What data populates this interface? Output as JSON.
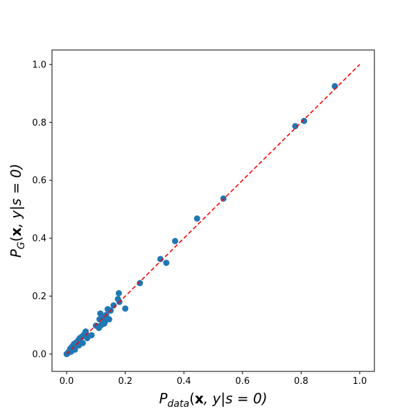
{
  "chart_data": {
    "type": "scatter",
    "xlabel": "P_{data}(\\mathbf{x}, y|s=0)",
    "ylabel": "P_G(\\mathbf{x}, y|s=0)",
    "xlabel_parts": {
      "P": "P",
      "sub": "data",
      "open": "(",
      "bold": "x",
      "rest": ", y|s = 0)"
    },
    "ylabel_parts": {
      "P": "P",
      "sub": "G",
      "open": "(",
      "bold": "x",
      "rest": ", y|s = 0)"
    },
    "xlim": [
      -0.05,
      1.05
    ],
    "ylim": [
      -0.06,
      1.05
    ],
    "x_ticks": [
      0.0,
      0.2,
      0.4,
      0.6,
      0.8,
      1.0
    ],
    "y_ticks": [
      0.0,
      0.2,
      0.4,
      0.6,
      0.8,
      1.0
    ],
    "x_tick_labels": [
      "0.0",
      "0.2",
      "0.4",
      "0.6",
      "0.8",
      "1.0"
    ],
    "y_tick_labels": [
      "0.0",
      "0.2",
      "0.4",
      "0.6",
      "0.8",
      "1.0"
    ],
    "grid": false,
    "points": [
      {
        "x": 0.0,
        "y": 0.0
      },
      {
        "x": 0.003,
        "y": 0.002
      },
      {
        "x": 0.006,
        "y": 0.006
      },
      {
        "x": 0.01,
        "y": 0.01
      },
      {
        "x": 0.012,
        "y": 0.018
      },
      {
        "x": 0.015,
        "y": 0.008
      },
      {
        "x": 0.018,
        "y": 0.025
      },
      {
        "x": 0.022,
        "y": 0.02
      },
      {
        "x": 0.025,
        "y": 0.035
      },
      {
        "x": 0.028,
        "y": 0.015
      },
      {
        "x": 0.03,
        "y": 0.028
      },
      {
        "x": 0.033,
        "y": 0.04
      },
      {
        "x": 0.036,
        "y": 0.032
      },
      {
        "x": 0.04,
        "y": 0.048
      },
      {
        "x": 0.042,
        "y": 0.03
      },
      {
        "x": 0.045,
        "y": 0.055
      },
      {
        "x": 0.048,
        "y": 0.042
      },
      {
        "x": 0.052,
        "y": 0.06
      },
      {
        "x": 0.055,
        "y": 0.038
      },
      {
        "x": 0.058,
        "y": 0.065
      },
      {
        "x": 0.062,
        "y": 0.07
      },
      {
        "x": 0.065,
        "y": 0.078
      },
      {
        "x": 0.07,
        "y": 0.055
      },
      {
        "x": 0.075,
        "y": 0.062
      },
      {
        "x": 0.085,
        "y": 0.065
      },
      {
        "x": 0.1,
        "y": 0.098
      },
      {
        "x": 0.11,
        "y": 0.09
      },
      {
        "x": 0.112,
        "y": 0.12
      },
      {
        "x": 0.115,
        "y": 0.14
      },
      {
        "x": 0.118,
        "y": 0.1
      },
      {
        "x": 0.125,
        "y": 0.125
      },
      {
        "x": 0.128,
        "y": 0.105
      },
      {
        "x": 0.13,
        "y": 0.11
      },
      {
        "x": 0.135,
        "y": 0.135
      },
      {
        "x": 0.14,
        "y": 0.155
      },
      {
        "x": 0.145,
        "y": 0.12
      },
      {
        "x": 0.15,
        "y": 0.15
      },
      {
        "x": 0.16,
        "y": 0.168
      },
      {
        "x": 0.175,
        "y": 0.19
      },
      {
        "x": 0.178,
        "y": 0.21
      },
      {
        "x": 0.18,
        "y": 0.18
      },
      {
        "x": 0.2,
        "y": 0.157
      },
      {
        "x": 0.25,
        "y": 0.245
      },
      {
        "x": 0.32,
        "y": 0.328
      },
      {
        "x": 0.34,
        "y": 0.315
      },
      {
        "x": 0.37,
        "y": 0.39
      },
      {
        "x": 0.445,
        "y": 0.468
      },
      {
        "x": 0.535,
        "y": 0.537
      },
      {
        "x": 0.78,
        "y": 0.787
      },
      {
        "x": 0.81,
        "y": 0.805
      },
      {
        "x": 0.915,
        "y": 0.925
      }
    ],
    "reference_line": {
      "from": [
        0.0,
        0.0
      ],
      "to": [
        1.0,
        1.0
      ],
      "style": "dashed"
    },
    "colors": {
      "points": "#1f77b4",
      "reference_line": "#ff0000",
      "axes": "#000000"
    }
  }
}
